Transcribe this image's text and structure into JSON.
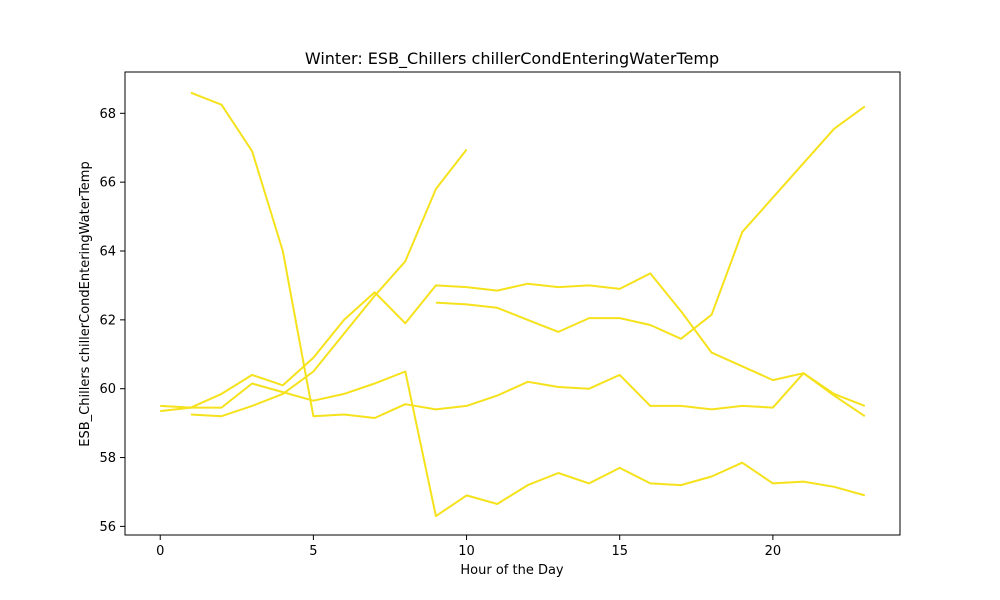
{
  "chart_data": {
    "type": "line",
    "title": "Winter: ESB_Chillers chillerCondEnteringWaterTemp",
    "xlabel": "Hour of the Day",
    "ylabel": "ESB_Chillers chillerCondEnteringWaterTemp",
    "xlim": [
      -1.15,
      24.15
    ],
    "ylim": [
      55.75,
      69.2
    ],
    "xticks": [
      0,
      5,
      10,
      15,
      20
    ],
    "yticks": [
      56,
      58,
      60,
      62,
      64,
      66,
      68
    ],
    "grid": false,
    "line_color": "#f5e21c",
    "series": [
      {
        "x": [
          1,
          2,
          3,
          4,
          5,
          6,
          7,
          8,
          9,
          10
        ],
        "values": [
          68.6,
          68.25,
          66.9,
          64.0,
          59.2,
          59.25,
          59.15,
          59.55,
          59.4,
          59.5
        ]
      },
      {
        "x": [
          0,
          1,
          2,
          3,
          4,
          5,
          6,
          7,
          8,
          9,
          10
        ],
        "values": [
          59.35,
          59.45,
          59.85,
          60.4,
          60.1,
          60.9,
          62.0,
          62.8,
          61.9,
          63.0,
          62.95
        ]
      },
      {
        "x": [
          1,
          2,
          3,
          4,
          5,
          6,
          7,
          8,
          9,
          10
        ],
        "values": [
          59.25,
          59.2,
          59.5,
          59.85,
          60.5,
          61.6,
          62.7,
          63.7,
          65.8,
          66.95
        ]
      },
      {
        "x": [
          0,
          1,
          2,
          3,
          4,
          5,
          6,
          7,
          8,
          9,
          10,
          11,
          12,
          13,
          14,
          15,
          16,
          17,
          18,
          19,
          20,
          21,
          22,
          23
        ],
        "values": [
          59.5,
          59.45,
          59.45,
          60.15,
          59.9,
          59.65,
          59.85,
          60.15,
          60.5,
          56.3,
          56.9,
          56.65,
          57.2,
          57.55,
          57.25,
          57.7,
          57.25,
          57.2,
          57.45,
          57.85,
          57.25,
          57.3,
          57.15,
          56.9
        ]
      },
      {
        "x": [
          10,
          11,
          12,
          13,
          14,
          15,
          16,
          17,
          18,
          19,
          20,
          21,
          22,
          23
        ],
        "values": [
          59.5,
          59.8,
          60.2,
          60.05,
          60.0,
          60.4,
          59.5,
          59.5,
          59.4,
          59.5,
          59.45,
          60.45,
          59.8,
          59.2
        ]
      },
      {
        "x": [
          10,
          11,
          12,
          13,
          14,
          15,
          16,
          17,
          18,
          19,
          20,
          21,
          22,
          23
        ],
        "values": [
          62.95,
          62.85,
          63.05,
          62.95,
          63.0,
          62.9,
          63.35,
          62.25,
          61.05,
          60.65,
          60.25,
          60.45,
          59.85,
          59.5
        ]
      },
      {
        "x": [
          9,
          10,
          11,
          12,
          13,
          14,
          15,
          16,
          17,
          18,
          19,
          20,
          21,
          22,
          23
        ],
        "values": [
          62.5,
          62.45,
          62.35,
          62.0,
          61.65,
          62.05,
          62.05,
          61.85,
          61.45,
          62.15,
          64.55,
          65.55,
          66.55,
          67.55,
          68.2
        ]
      }
    ]
  }
}
